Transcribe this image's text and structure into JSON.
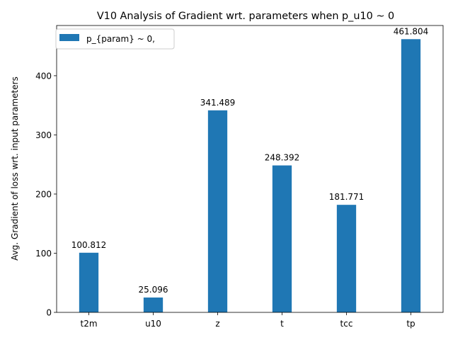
{
  "chart_data": {
    "type": "bar",
    "title": "V10 Analysis of Gradient wrt. parameters when p_u10 ~ 0",
    "xlabel": "",
    "ylabel": "Avg. Gradient of loss wrt. input parameters",
    "categories": [
      "t2m",
      "u10",
      "z",
      "t",
      "tcc",
      "tp"
    ],
    "series": [
      {
        "name": "p_{param} ~ 0,",
        "values": [
          100.812,
          25.096,
          341.489,
          248.392,
          181.771,
          461.804
        ],
        "data_labels": [
          "100.812",
          "25.096",
          "341.489",
          "248.392",
          "181.771",
          "461.804"
        ]
      }
    ],
    "yticks": [
      0,
      100,
      200,
      300,
      400
    ],
    "ytick_labels": [
      "0",
      "100",
      "200",
      "300",
      "400"
    ],
    "ylim": [
      0,
      484.9
    ],
    "grid": false,
    "legend_position": "upper-left",
    "bar_color": "#1f77b4"
  }
}
